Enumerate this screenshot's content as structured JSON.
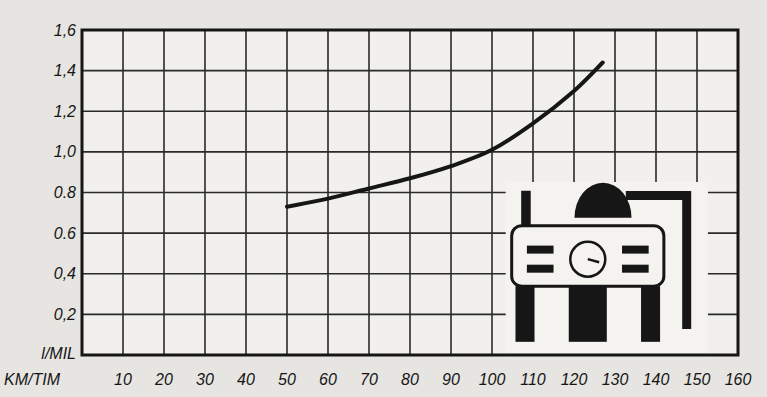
{
  "chart_data": {
    "type": "line",
    "x_label": "KM/TIM",
    "y_label": "l/MIL",
    "x": [
      50,
      60,
      70,
      80,
      90,
      100,
      110,
      120,
      127
    ],
    "values": [
      0.73,
      0.77,
      0.82,
      0.87,
      0.93,
      1.01,
      1.14,
      1.3,
      1.44
    ],
    "color": "#161616",
    "xlim": [
      0,
      160
    ],
    "xticks": [
      10,
      20,
      30,
      40,
      50,
      60,
      70,
      80,
      90,
      100,
      110,
      120,
      130,
      140,
      150,
      160
    ],
    "ylim": [
      0,
      1.6
    ],
    "yticks": [
      {
        "value": 0.2,
        "label": "0,2"
      },
      {
        "value": 0.4,
        "label": "0,4"
      },
      {
        "value": 0.6,
        "label": "0.6"
      },
      {
        "value": 0.8,
        "label": "0.8"
      },
      {
        "value": 1.0,
        "label": "1,0"
      },
      {
        "value": 1.2,
        "label": "1,2"
      },
      {
        "value": 1.4,
        "label": "1,4"
      },
      {
        "value": 1.6,
        "label": "1,6"
      }
    ],
    "grid": true
  }
}
